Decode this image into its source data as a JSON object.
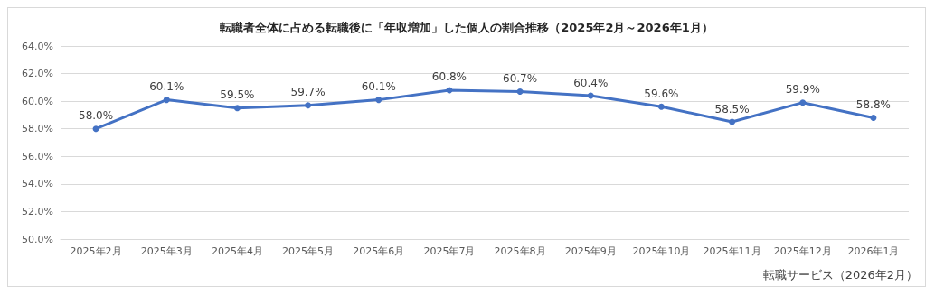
{
  "chart_data": {
    "type": "line",
    "title": "転職者全体に占める転職後に「年収増加」した個人の割合推移（2025年2月～2026年1月）",
    "categories": [
      "2025年2月",
      "2025年3月",
      "2025年4月",
      "2025年5月",
      "2025年6月",
      "2025年7月",
      "2025年8月",
      "2025年9月",
      "2025年10月",
      "2025年11月",
      "2025年12月",
      "2026年1月"
    ],
    "series": [
      {
        "color": "#4472c4",
        "values": [
          58.0,
          60.1,
          59.5,
          59.7,
          60.1,
          60.8,
          60.7,
          60.4,
          59.6,
          58.5,
          59.9,
          58.8
        ],
        "value_labels": [
          "58.0%",
          "60.1%",
          "59.5%",
          "59.7%",
          "60.1%",
          "60.8%",
          "60.7%",
          "60.4%",
          "59.6%",
          "58.5%",
          "59.9%",
          "58.8%"
        ]
      }
    ],
    "ylim": [
      50,
      64
    ],
    "yticks": [
      {
        "value": 50,
        "label": "50.0%"
      },
      {
        "value": 52,
        "label": "52.0%"
      },
      {
        "value": 54,
        "label": "54.0%"
      },
      {
        "value": 56,
        "label": "56.0%"
      },
      {
        "value": 58,
        "label": "58.0%"
      },
      {
        "value": 60,
        "label": "60.0%"
      },
      {
        "value": 62,
        "label": "62.0%"
      },
      {
        "value": 64,
        "label": "64.0%"
      }
    ],
    "grid": "y",
    "marker": "circle",
    "line_style": "solid",
    "annotations": [
      "転職サービス（2026年2月）"
    ]
  }
}
